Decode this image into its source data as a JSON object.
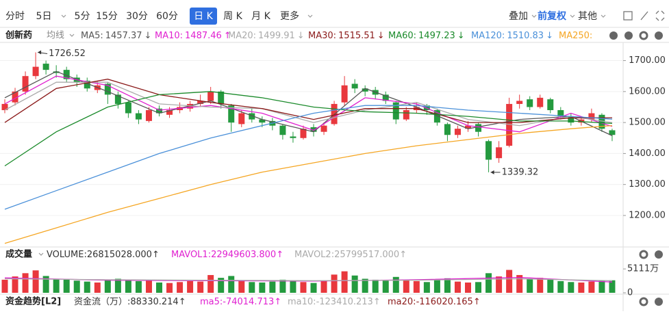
{
  "toolbar": {
    "tabs": [
      "分时",
      "5日",
      "5分",
      "15分",
      "30分",
      "60分",
      "日 K",
      "周 K",
      "月 K",
      "更多"
    ],
    "right": [
      "叠加",
      "前复权",
      "其他"
    ]
  },
  "chart_data": [
    {
      "type": "candlestick",
      "title": "创新药",
      "ma_label": "均线",
      "up_color": "#e8383d",
      "down_color": "#249a3f",
      "ylim": [
        1105,
        1752
      ],
      "yticks": [
        {
          "value": 1200,
          "label": "1200.00"
        },
        {
          "value": 1300,
          "label": "1300.00"
        },
        {
          "value": 1400,
          "label": "1400.00"
        },
        {
          "value": 1500,
          "label": "1500.00"
        },
        {
          "value": 1600,
          "label": "1600.00"
        },
        {
          "value": 1700,
          "label": "1700.00"
        }
      ],
      "grid": true,
      "open": [
        1540,
        1565,
        1600,
        1650,
        1690,
        1665,
        1670,
        1645,
        1635,
        1605,
        1625,
        1590,
        1565,
        1530,
        1505,
        1545,
        1525,
        1540,
        1545,
        1560,
        1570,
        1600,
        1555,
        1495,
        1530,
        1510,
        1505,
        1490,
        1455,
        1450,
        1485,
        1470,
        1495,
        1565,
        1625,
        1610,
        1605,
        1590,
        1565,
        1510,
        1540,
        1555,
        1540,
        1495,
        1460,
        1480,
        1495,
        1440,
        1385,
        1425,
        1560,
        1575,
        1550,
        1575,
        1540,
        1520,
        1500,
        1510,
        1525,
        1475
      ],
      "high": [
        1575,
        1612,
        1665,
        1726.52,
        1700,
        1685,
        1680,
        1655,
        1645,
        1635,
        1630,
        1600,
        1570,
        1540,
        1550,
        1555,
        1550,
        1565,
        1570,
        1590,
        1615,
        1605,
        1560,
        1540,
        1545,
        1520,
        1515,
        1495,
        1470,
        1490,
        1495,
        1500,
        1570,
        1650,
        1640,
        1620,
        1615,
        1600,
        1570,
        1550,
        1565,
        1560,
        1545,
        1500,
        1490,
        1505,
        1500,
        1445,
        1440,
        1580,
        1590,
        1585,
        1590,
        1580,
        1550,
        1530,
        1520,
        1545,
        1530,
        1480
      ],
      "low": [
        1530,
        1555,
        1590,
        1640,
        1655,
        1645,
        1630,
        1615,
        1600,
        1595,
        1560,
        1545,
        1515,
        1495,
        1500,
        1520,
        1515,
        1530,
        1535,
        1550,
        1560,
        1545,
        1470,
        1485,
        1500,
        1485,
        1475,
        1445,
        1435,
        1445,
        1455,
        1460,
        1490,
        1555,
        1595,
        1585,
        1575,
        1560,
        1495,
        1505,
        1530,
        1525,
        1490,
        1440,
        1450,
        1470,
        1455,
        1339.32,
        1370,
        1420,
        1545,
        1540,
        1545,
        1530,
        1510,
        1490,
        1490,
        1500,
        1470,
        1440
      ],
      "close": [
        1560,
        1600,
        1650,
        1680,
        1670,
        1660,
        1640,
        1630,
        1610,
        1620,
        1590,
        1560,
        1530,
        1510,
        1540,
        1530,
        1540,
        1550,
        1560,
        1570,
        1600,
        1560,
        1500,
        1530,
        1510,
        1500,
        1490,
        1460,
        1450,
        1480,
        1470,
        1490,
        1560,
        1620,
        1610,
        1600,
        1590,
        1570,
        1510,
        1540,
        1550,
        1540,
        1500,
        1460,
        1480,
        1490,
        1470,
        1380,
        1420,
        1560,
        1570,
        1550,
        1580,
        1540,
        1520,
        1500,
        1510,
        1530,
        1480,
        1460
      ],
      "annotations": [
        1726.52,
        1339.32
      ],
      "indicators": [
        {
          "name": "MA5:",
          "value": 1457.37,
          "arrow": "↓",
          "color": "#555555",
          "x": [
            0,
            5,
            10,
            15,
            20,
            25,
            30,
            35,
            40,
            45,
            50,
            55,
            59
          ],
          "values": [
            1580,
            1665,
            1600,
            1530,
            1570,
            1510,
            1470,
            1610,
            1550,
            1480,
            1510,
            1520,
            1457.37
          ]
        },
        {
          "name": "MA10:",
          "value": 1487.46,
          "arrow": "↑",
          "color": "#e020d0",
          "x": [
            0,
            5,
            10,
            15,
            20,
            25,
            30,
            35,
            40,
            45,
            50,
            55,
            59
          ],
          "values": [
            1560,
            1650,
            1620,
            1540,
            1555,
            1530,
            1475,
            1580,
            1560,
            1490,
            1470,
            1530,
            1487.46
          ]
        },
        {
          "name": "MA20:",
          "value": 1499.91,
          "arrow": "↓",
          "color": "#aaaaaa",
          "x": [
            0,
            5,
            10,
            15,
            20,
            25,
            30,
            35,
            40,
            45,
            50,
            55,
            59
          ],
          "values": [
            1540,
            1630,
            1630,
            1560,
            1550,
            1545,
            1500,
            1540,
            1565,
            1510,
            1490,
            1520,
            1499.91
          ]
        },
        {
          "name": "MA30:",
          "value": 1515.51,
          "arrow": "↓",
          "color": "#8b1a1a",
          "x": [
            0,
            5,
            10,
            15,
            20,
            25,
            30,
            35,
            40,
            45,
            50,
            55,
            59
          ],
          "values": [
            1500,
            1610,
            1640,
            1590,
            1565,
            1545,
            1510,
            1545,
            1545,
            1500,
            1500,
            1515,
            1515.51
          ]
        },
        {
          "name": "MA60:",
          "value": 1497.23,
          "arrow": "↓",
          "color": "#1a8a2a",
          "x": [
            0,
            5,
            10,
            15,
            20,
            25,
            30,
            35,
            40,
            45,
            50,
            55,
            59
          ],
          "values": [
            1360,
            1470,
            1550,
            1590,
            1600,
            1580,
            1550,
            1535,
            1530,
            1520,
            1505,
            1505,
            1497.23
          ]
        },
        {
          "name": "MA120:",
          "value": 1510.83,
          "arrow": "↓",
          "color": "#4a90d9",
          "x": [
            0,
            5,
            10,
            15,
            20,
            25,
            30,
            35,
            40,
            45,
            50,
            55,
            59
          ],
          "values": [
            1220,
            1280,
            1340,
            1400,
            1450,
            1490,
            1530,
            1555,
            1555,
            1540,
            1530,
            1520,
            1510.83
          ]
        },
        {
          "name": "MA250:",
          "color": "#f5a623",
          "x": [
            0,
            5,
            10,
            15,
            20,
            25,
            30,
            35,
            40,
            45,
            50,
            55,
            59
          ],
          "values": [
            1110,
            1160,
            1210,
            1255,
            1300,
            1340,
            1370,
            1400,
            1425,
            1445,
            1465,
            1480,
            1490
          ]
        }
      ]
    },
    {
      "type": "bar",
      "title": "成交量",
      "ylim": [
        0,
        6300
      ],
      "yticks": [
        {
          "value": 5111,
          "label": "5111万"
        },
        0
      ],
      "values": [
        2800,
        3500,
        4200,
        4800,
        3600,
        3000,
        2900,
        2600,
        2400,
        2200,
        2800,
        3000,
        2700,
        2500,
        2600,
        2200,
        2100,
        2300,
        2500,
        2400,
        3800,
        3200,
        3600,
        2600,
        2300,
        2200,
        2400,
        2800,
        2600,
        2300,
        2100,
        2500,
        3900,
        4600,
        3700,
        3000,
        2800,
        2600,
        3400,
        2700,
        2500,
        2300,
        2900,
        3100,
        2400,
        2200,
        2300,
        4200,
        3500,
        4900,
        3800,
        3000,
        3200,
        2800,
        2500,
        2300,
        2200,
        2400,
        2700,
        2681.5028
      ],
      "readouts": [
        {
          "name": "VOLUME:",
          "value": 26815028,
          "label": "26815028.000",
          "arrow": "↑",
          "color": "#333333"
        },
        {
          "name": "MAVOL1:",
          "value": 22949603.8,
          "label": "22949603.800",
          "arrow": "↑",
          "color": "#e020d0",
          "x": [
            0,
            10,
            20,
            30,
            40,
            50,
            59
          ],
          "values": [
            3200,
            2700,
            2600,
            2500,
            2800,
            3300,
            2294.96038
          ]
        },
        {
          "name": "MAVOL2:",
          "value": 25799517,
          "label": "25799517.000",
          "arrow": "↑",
          "color": "#aaaaaa",
          "x": [
            0,
            10,
            20,
            30,
            40,
            50,
            59
          ],
          "values": [
            3000,
            2800,
            2700,
            2600,
            2700,
            3000,
            2579.9517
          ]
        }
      ]
    }
  ],
  "flow_panel": {
    "title": "资金趋势[L2]",
    "readouts": [
      {
        "name": "资金流（万）:",
        "value": 88330.214,
        "arrow": "↑",
        "color": "#333333"
      },
      {
        "name": "ma5:",
        "value": -74014.713,
        "arrow": "↑",
        "color": "#e020d0"
      },
      {
        "name": "ma10:",
        "value": -123410.213,
        "arrow": "↑",
        "color": "#aaaaaa"
      },
      {
        "name": "ma20:",
        "value": -116020.165,
        "arrow": "↑",
        "color": "#8b1a1a"
      }
    ]
  }
}
